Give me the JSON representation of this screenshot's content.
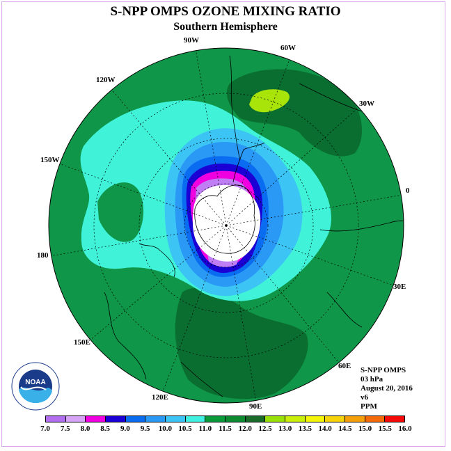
{
  "title": "S-NPP OMPS OZONE MIXING RATIO",
  "subtitle": "Southern Hemisphere",
  "longitude_labels": [
    "90W",
    "60W",
    "30W",
    "0",
    "30E",
    "60E",
    "90E",
    "120E",
    "150E",
    "180",
    "150W",
    "120W"
  ],
  "info": {
    "line1": "S-NPP OMPS",
    "line2": "03 hPa",
    "line3": "August 20, 2016",
    "line4": "v6",
    "line5": "PPM"
  },
  "logo_text": "NOAA",
  "colorbar": {
    "ticks": [
      "7.0",
      "7.5",
      "8.0",
      "8.5",
      "9.0",
      "9.5",
      "10.0",
      "10.5",
      "11.0",
      "11.5",
      "12.0",
      "12.5",
      "13.0",
      "13.5",
      "14.0",
      "14.5",
      "15.0",
      "15.5",
      "16.0"
    ],
    "colors": [
      "#b36ef0",
      "#d7a3f5",
      "#f000e0",
      "#1a00d4",
      "#0a6cf0",
      "#2a98f5",
      "#3cc4f5",
      "#40f0e0",
      "#0a9a3a",
      "#0e8a30",
      "#1a6a2a",
      "#9ae00a",
      "#c8ee0a",
      "#f5f50a",
      "#f5d20a",
      "#f5a00a",
      "#f56a0a",
      "#f50a0a",
      "#8a5a3a"
    ]
  },
  "map_colors": {
    "background": "#0f9648",
    "dark_green": "#0a6e30",
    "light_green": "#a8e30a",
    "cyan": "#3ff2d8",
    "light_blue": "#3cc4f5",
    "mid_blue": "#2a98f5",
    "blue": "#0a6cf0",
    "dark_blue": "#1a00d4",
    "magenta": "#f000e0",
    "lavender": "#c07ef5"
  }
}
